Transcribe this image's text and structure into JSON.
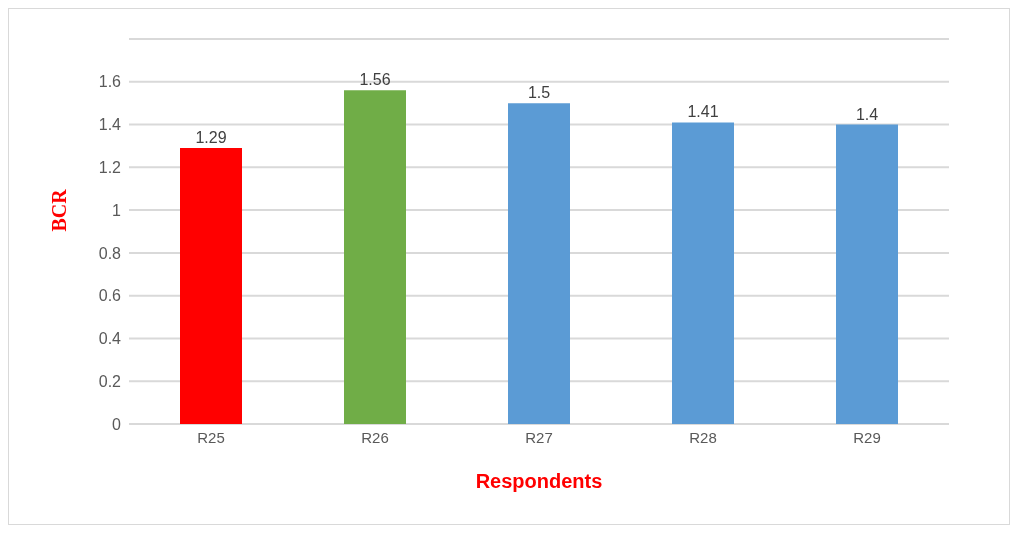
{
  "chart_data": {
    "type": "bar",
    "xlabel": "Respondents",
    "ylabel": "BCR",
    "categories": [
      "R25",
      "R26",
      "R27",
      "R28",
      "R29"
    ],
    "values": [
      1.29,
      1.56,
      1.5,
      1.41,
      1.4
    ],
    "colors": [
      "#ff0000",
      "#70ad47",
      "#5b9bd5",
      "#5b9bd5",
      "#5b9bd5"
    ],
    "ylim": [
      0,
      1.8
    ],
    "yticks": [
      0,
      0.2,
      0.4,
      0.6,
      0.8,
      1,
      1.2,
      1.4,
      1.6
    ],
    "grid": "y",
    "data_labels": true
  }
}
